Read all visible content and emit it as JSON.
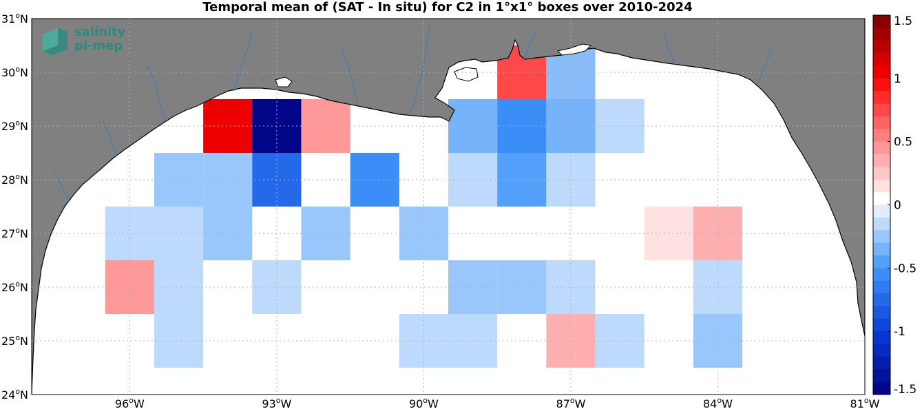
{
  "chart_data": {
    "type": "heatmap",
    "title": "Temporal mean of (SAT - In situ) for C2 in 1°x1° boxes over 2010-2024",
    "xlim": [
      -98,
      -81
    ],
    "ylim": [
      24,
      31
    ],
    "x_ticks": [
      {
        "value": -96,
        "num": "96",
        "unit": "W"
      },
      {
        "value": -93,
        "num": "93",
        "unit": "W"
      },
      {
        "value": -90,
        "num": "90",
        "unit": "W"
      },
      {
        "value": -87,
        "num": "87",
        "unit": "W"
      },
      {
        "value": -84,
        "num": "84",
        "unit": "W"
      },
      {
        "value": -81,
        "num": "81",
        "unit": "W"
      }
    ],
    "y_ticks": [
      {
        "value": 24,
        "num": "24",
        "unit": "N"
      },
      {
        "value": 25,
        "num": "25",
        "unit": "N"
      },
      {
        "value": 26,
        "num": "26",
        "unit": "N"
      },
      {
        "value": 27,
        "num": "27",
        "unit": "N"
      },
      {
        "value": 28,
        "num": "28",
        "unit": "N"
      },
      {
        "value": 29,
        "num": "29",
        "unit": "N"
      },
      {
        "value": 30,
        "num": "30",
        "unit": "N"
      },
      {
        "value": 31,
        "num": "31",
        "unit": "N"
      }
    ],
    "grid": true,
    "colorbar": {
      "range": [
        -1.5,
        1.5
      ],
      "step": 0.1,
      "ticks": [
        {
          "value": 1.5,
          "label": "1.5"
        },
        {
          "value": 1,
          "label": "1"
        },
        {
          "value": 0.5,
          "label": "0.5"
        },
        {
          "value": 0,
          "label": "0"
        },
        {
          "value": -0.5,
          "label": "-0.5"
        },
        {
          "value": -1,
          "label": "-1"
        },
        {
          "value": -1.5,
          "label": "-1.5"
        }
      ]
    },
    "cells": [
      {
        "lon": -94,
        "lat": 29,
        "value": 1.05
      },
      {
        "lon": -93,
        "lat": 29,
        "value": -1.45
      },
      {
        "lon": -92,
        "lat": 29,
        "value": 0.45
      },
      {
        "lon": -89,
        "lat": 29,
        "value": -0.35
      },
      {
        "lon": -88,
        "lat": 29,
        "value": -0.55
      },
      {
        "lon": -87,
        "lat": 29,
        "value": -0.35
      },
      {
        "lon": -86,
        "lat": 29,
        "value": -0.15
      },
      {
        "lon": -88,
        "lat": 30,
        "value": 0.75
      },
      {
        "lon": -87,
        "lat": 30,
        "value": -0.3
      },
      {
        "lon": -95,
        "lat": 28,
        "value": -0.25
      },
      {
        "lon": -94,
        "lat": 28,
        "value": -0.25
      },
      {
        "lon": -93,
        "lat": 28,
        "value": -0.75
      },
      {
        "lon": -91,
        "lat": 28,
        "value": -0.55
      },
      {
        "lon": -89,
        "lat": 28,
        "value": -0.15
      },
      {
        "lon": -88,
        "lat": 28,
        "value": -0.45
      },
      {
        "lon": -87,
        "lat": 28,
        "value": -0.15
      },
      {
        "lon": -96,
        "lat": 27,
        "value": -0.15
      },
      {
        "lon": -95,
        "lat": 27,
        "value": -0.15
      },
      {
        "lon": -94,
        "lat": 27,
        "value": -0.25
      },
      {
        "lon": -92,
        "lat": 27,
        "value": -0.25
      },
      {
        "lon": -90,
        "lat": 27,
        "value": -0.25
      },
      {
        "lon": -85,
        "lat": 27,
        "value": 0.15
      },
      {
        "lon": -84,
        "lat": 27,
        "value": 0.35
      },
      {
        "lon": -96,
        "lat": 26,
        "value": 0.45
      },
      {
        "lon": -95,
        "lat": 26,
        "value": -0.15
      },
      {
        "lon": -93,
        "lat": 26,
        "value": -0.15
      },
      {
        "lon": -89,
        "lat": 26,
        "value": -0.25
      },
      {
        "lon": -88,
        "lat": 26,
        "value": -0.25
      },
      {
        "lon": -87,
        "lat": 26,
        "value": -0.15
      },
      {
        "lon": -84,
        "lat": 26,
        "value": -0.15
      },
      {
        "lon": -95,
        "lat": 25,
        "value": -0.15
      },
      {
        "lon": -90,
        "lat": 25,
        "value": -0.15
      },
      {
        "lon": -89,
        "lat": 25,
        "value": -0.15
      },
      {
        "lon": -87,
        "lat": 25,
        "value": 0.35
      },
      {
        "lon": -86,
        "lat": 25,
        "value": -0.15
      },
      {
        "lon": -84,
        "lat": 25,
        "value": -0.25
      }
    ]
  },
  "logo": {
    "line1": "salinity",
    "line2": "pi-mep"
  },
  "colors": {
    "land": "#808080",
    "ocean": "#ffffff",
    "coast": "#000000",
    "river": "#3a78c8",
    "grid": "#b0b0b0",
    "logo": "#2a8c7e"
  }
}
